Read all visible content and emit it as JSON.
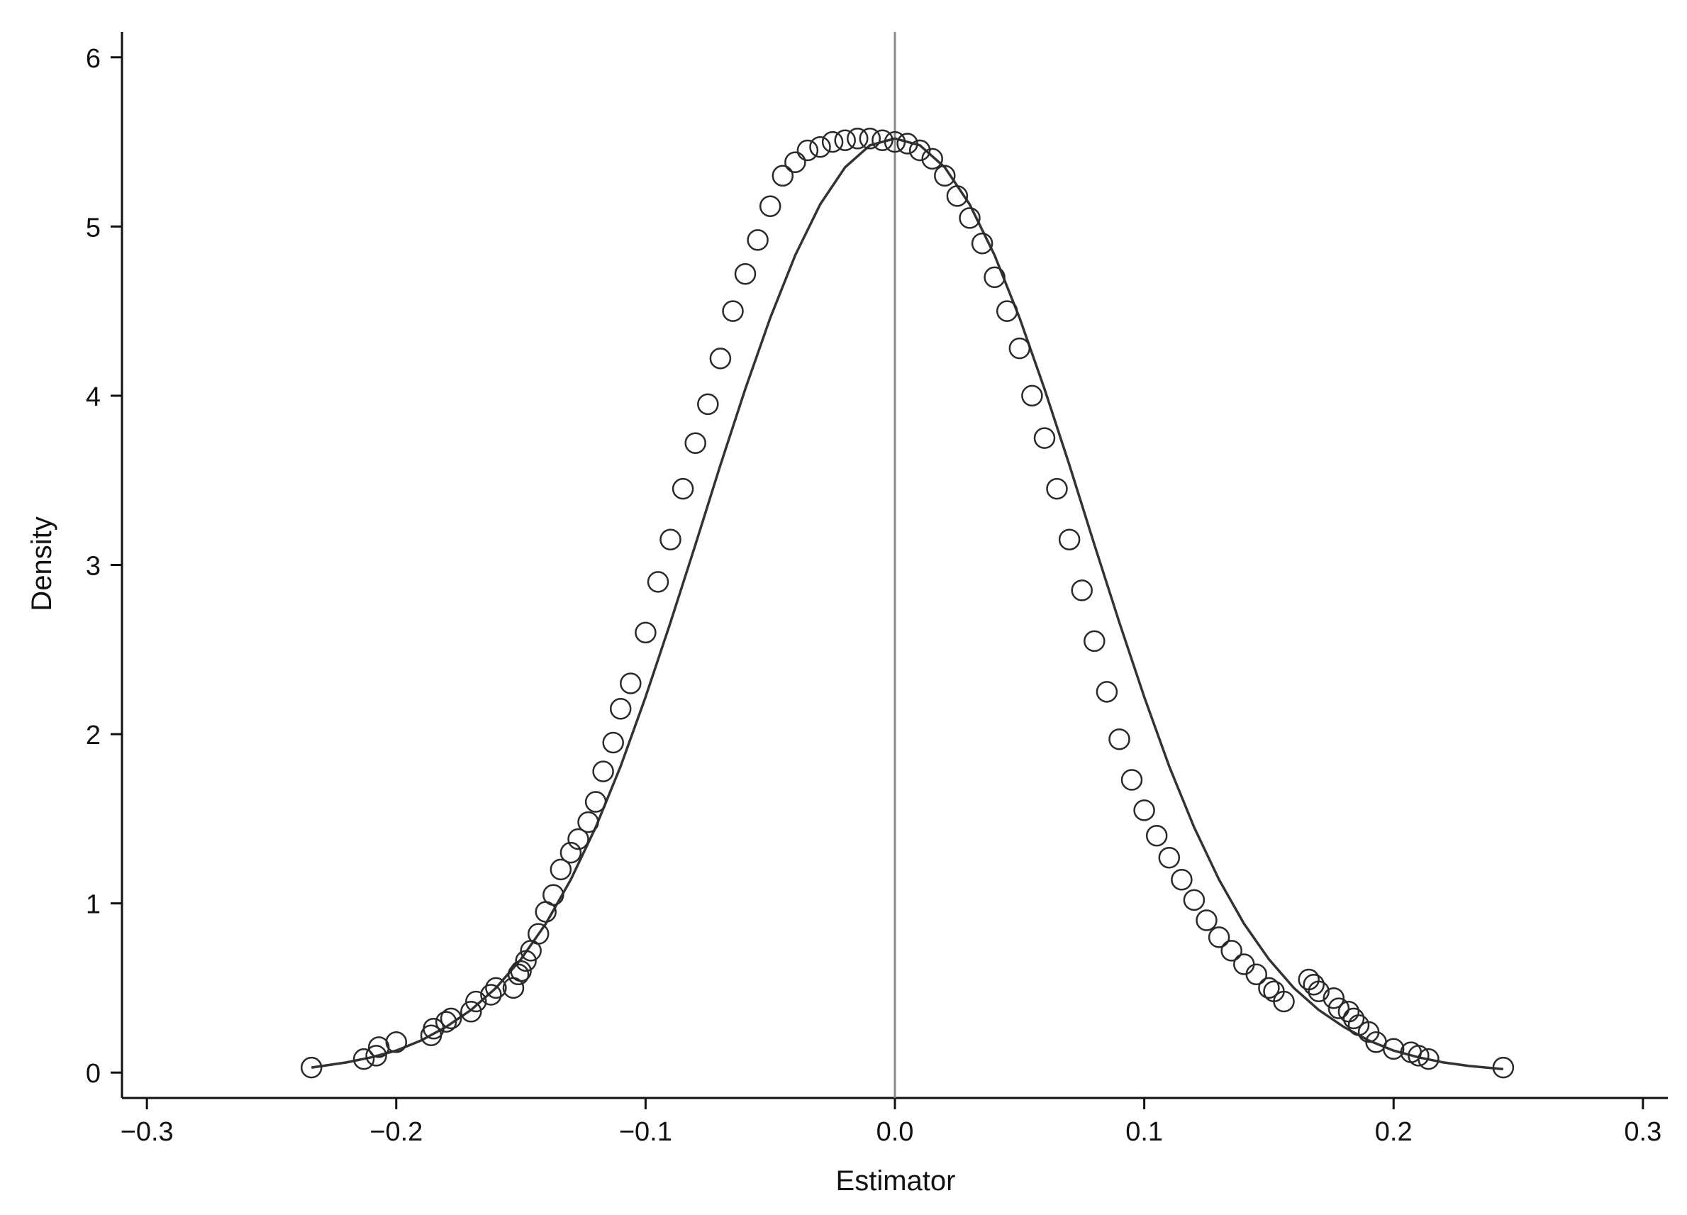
{
  "chart_data": {
    "type": "scatter",
    "title": "",
    "xlabel": "Estimator",
    "ylabel": "Density",
    "xlim": [
      -0.31,
      0.31
    ],
    "ylim": [
      -0.15,
      6.15
    ],
    "xticks": [
      -0.3,
      -0.2,
      -0.1,
      0.0,
      0.1,
      0.2,
      0.3
    ],
    "xtick_labels": [
      "−0.3",
      "−0.2",
      "−0.1",
      "0.0",
      "0.1",
      "0.2",
      "0.3"
    ],
    "yticks": [
      0,
      1,
      2,
      3,
      4,
      5,
      6
    ],
    "ytick_labels": [
      "0",
      "1",
      "2",
      "3",
      "4",
      "5",
      "6"
    ],
    "reference_line_x": 0.0,
    "grid": false,
    "legend": "none",
    "colors": {
      "markers": "#2a2a2a",
      "curve": "#333333",
      "reference_line": "#8a8a8a",
      "axes": "#111111"
    },
    "series": [
      {
        "kind": "points",
        "marker": "hollow-circle",
        "x": [
          -0.234,
          -0.213,
          -0.208,
          -0.207,
          -0.2,
          -0.186,
          -0.185,
          -0.18,
          -0.178,
          -0.17,
          -0.168,
          -0.162,
          -0.16,
          -0.153,
          -0.151,
          -0.15,
          -0.148,
          -0.146,
          -0.143,
          -0.14,
          -0.137,
          -0.134,
          -0.13,
          -0.127,
          -0.123,
          -0.12,
          -0.117,
          -0.113,
          -0.11,
          -0.106,
          -0.1,
          -0.095,
          -0.09,
          -0.085,
          -0.08,
          -0.075,
          -0.07,
          -0.065,
          -0.06,
          -0.055,
          -0.05,
          -0.045,
          -0.04,
          -0.035,
          -0.03,
          -0.025,
          -0.02,
          -0.015,
          -0.01,
          -0.005,
          0.0,
          0.005,
          0.01,
          0.015,
          0.02,
          0.025,
          0.03,
          0.035,
          0.04,
          0.045,
          0.05,
          0.055,
          0.06,
          0.065,
          0.07,
          0.075,
          0.08,
          0.085,
          0.09,
          0.095,
          0.1,
          0.105,
          0.11,
          0.115,
          0.12,
          0.125,
          0.13,
          0.135,
          0.14,
          0.145,
          0.15,
          0.152,
          0.156,
          0.166,
          0.168,
          0.17,
          0.176,
          0.178,
          0.182,
          0.184,
          0.186,
          0.19,
          0.193,
          0.2,
          0.207,
          0.21,
          0.214,
          0.244
        ],
        "y": [
          0.03,
          0.08,
          0.1,
          0.15,
          0.18,
          0.22,
          0.26,
          0.3,
          0.32,
          0.36,
          0.42,
          0.46,
          0.5,
          0.5,
          0.58,
          0.6,
          0.66,
          0.72,
          0.82,
          0.95,
          1.05,
          1.2,
          1.3,
          1.38,
          1.48,
          1.6,
          1.78,
          1.95,
          2.15,
          2.3,
          2.6,
          2.9,
          3.15,
          3.45,
          3.72,
          3.95,
          4.22,
          4.5,
          4.72,
          4.92,
          5.12,
          5.3,
          5.38,
          5.45,
          5.47,
          5.5,
          5.51,
          5.52,
          5.52,
          5.51,
          5.5,
          5.49,
          5.45,
          5.4,
          5.3,
          5.18,
          5.05,
          4.9,
          4.7,
          4.5,
          4.28,
          4.0,
          3.75,
          3.45,
          3.15,
          2.85,
          2.55,
          2.25,
          1.97,
          1.73,
          1.55,
          1.4,
          1.27,
          1.14,
          1.02,
          0.9,
          0.8,
          0.72,
          0.64,
          0.58,
          0.5,
          0.48,
          0.42,
          0.55,
          0.52,
          0.48,
          0.44,
          0.38,
          0.36,
          0.32,
          0.28,
          0.24,
          0.18,
          0.14,
          0.12,
          0.1,
          0.08,
          0.03
        ]
      },
      {
        "kind": "line",
        "x": [
          -0.234,
          -0.22,
          -0.21,
          -0.2,
          -0.19,
          -0.18,
          -0.17,
          -0.16,
          -0.15,
          -0.14,
          -0.13,
          -0.12,
          -0.11,
          -0.1,
          -0.09,
          -0.08,
          -0.07,
          -0.06,
          -0.05,
          -0.04,
          -0.03,
          -0.02,
          -0.01,
          0.0,
          0.01,
          0.02,
          0.03,
          0.04,
          0.05,
          0.06,
          0.07,
          0.08,
          0.09,
          0.1,
          0.11,
          0.12,
          0.13,
          0.14,
          0.15,
          0.16,
          0.17,
          0.18,
          0.19,
          0.2,
          0.21,
          0.22,
          0.23,
          0.244
        ],
        "y": [
          0.03,
          0.06,
          0.09,
          0.13,
          0.19,
          0.27,
          0.37,
          0.5,
          0.67,
          0.88,
          1.14,
          1.45,
          1.81,
          2.22,
          2.66,
          3.12,
          3.59,
          4.04,
          4.46,
          4.83,
          5.13,
          5.35,
          5.48,
          5.52,
          5.48,
          5.35,
          5.13,
          4.83,
          4.46,
          4.04,
          3.59,
          3.12,
          2.66,
          2.22,
          1.81,
          1.45,
          1.14,
          0.88,
          0.67,
          0.5,
          0.37,
          0.27,
          0.19,
          0.13,
          0.09,
          0.06,
          0.04,
          0.02
        ]
      }
    ]
  }
}
